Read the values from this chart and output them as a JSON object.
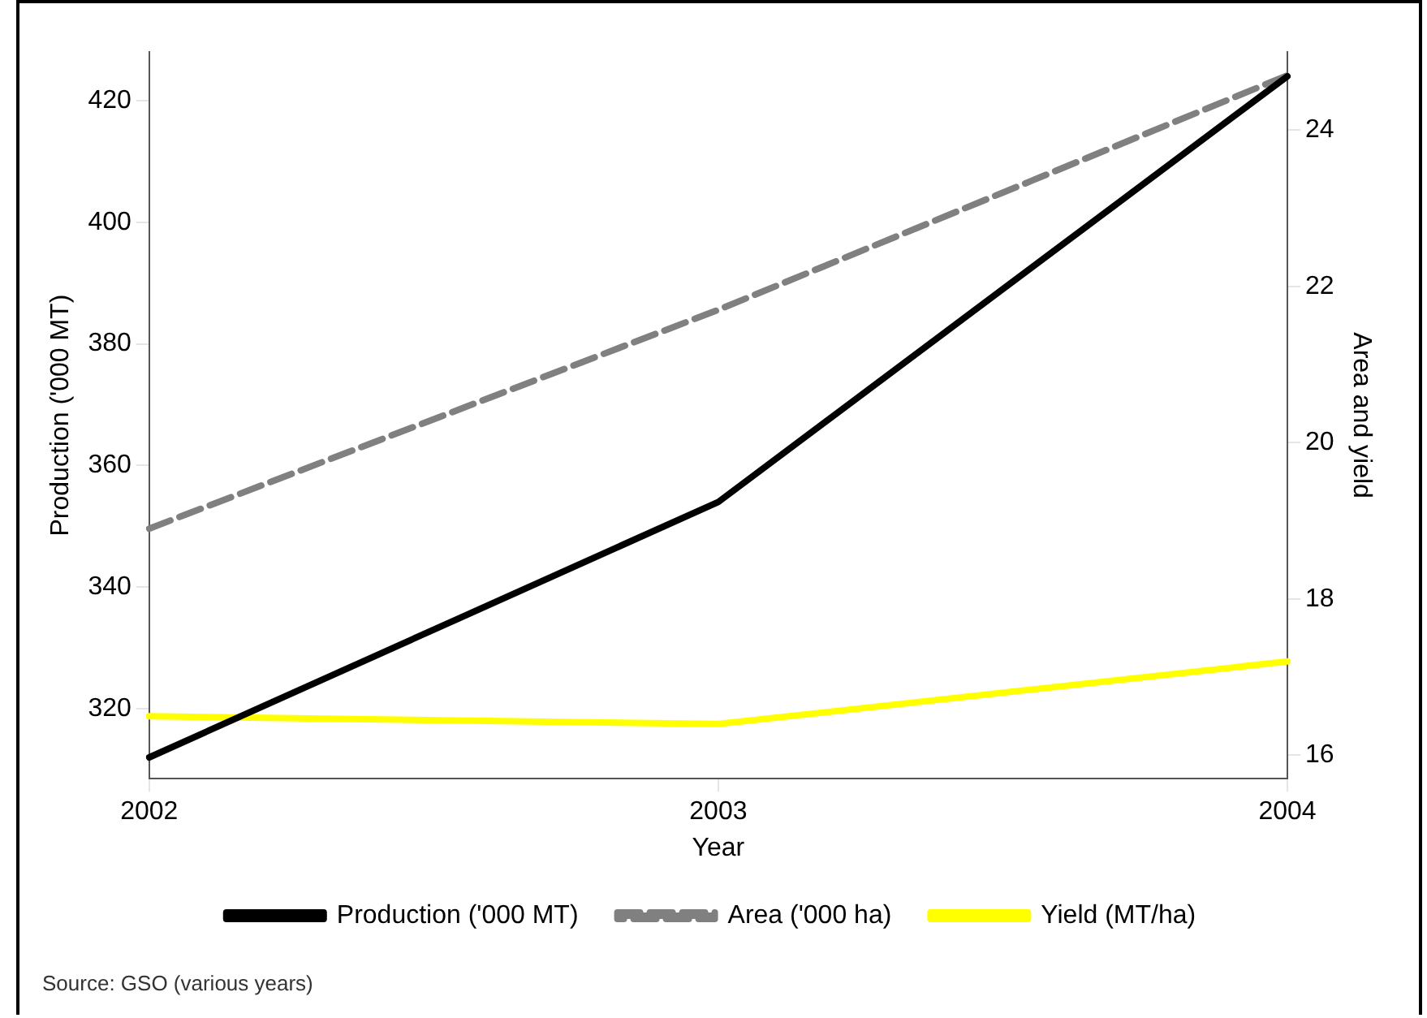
{
  "chart_data": {
    "type": "line",
    "xlabel": "Year",
    "ylabel": "Production ('000 MT)",
    "y2label": "Area and yield",
    "categories": [
      "2002",
      "2003",
      "2004"
    ],
    "series": [
      {
        "name": "Production ('000 MT)",
        "color": "#000000",
        "values": [
          312,
          354,
          424
        ],
        "line_style": "solid"
      },
      {
        "name": "Area ('000 ha)",
        "color": "#808080",
        "values": [
          18.9,
          21.7,
          24.7
        ],
        "axis": "y2",
        "line_style": "dashed"
      },
      {
        "name": "Yield (MT/ha)",
        "color": "#ffff00",
        "values": [
          16.5,
          16.4,
          17.2
        ],
        "axis": "y2",
        "line_style": "solid"
      }
    ],
    "ylim": [
      308.5,
      428
    ],
    "yticks": [
      320,
      340,
      360,
      380,
      400,
      420
    ],
    "y2lim": [
      15.7,
      25
    ],
    "y2ticks": [
      16,
      18,
      20,
      22,
      24
    ],
    "grid": false,
    "legend": "bottom",
    "marker": "none",
    "annotations": [
      "Source: GSO (various years)"
    ]
  }
}
